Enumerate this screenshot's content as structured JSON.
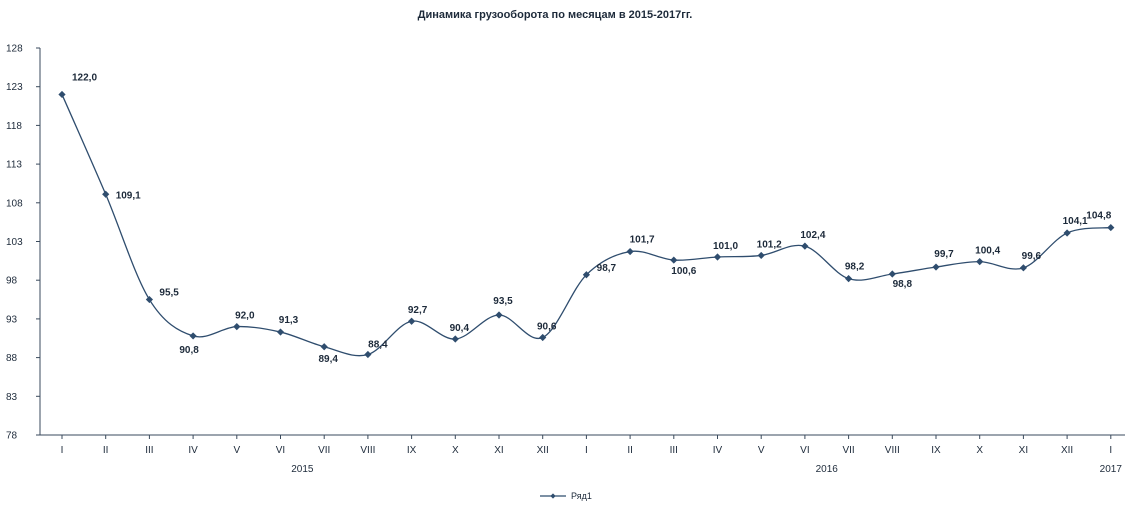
{
  "chart_data": {
    "type": "line",
    "title": "Динамика грузооборота по месяцам в 2015-2017гг.",
    "xlabel": "",
    "ylabel": "",
    "ylim": [
      78,
      128
    ],
    "yticks": [
      "78",
      "83",
      "88",
      "93",
      "98",
      "103",
      "108",
      "113",
      "118",
      "123",
      "128"
    ],
    "categories": [
      "I",
      "II",
      "III",
      "IV",
      "V",
      "VI",
      "VII",
      "VIII",
      "IX",
      "X",
      "XI",
      "XII",
      "I",
      "II",
      "III",
      "IV",
      "V",
      "VI",
      "VII",
      "VIII",
      "IX",
      "X",
      "XI",
      "XII",
      "I"
    ],
    "year_groups": [
      {
        "label": "2015",
        "start": 0,
        "end": 11
      },
      {
        "label": "2016",
        "start": 12,
        "end": 23
      },
      {
        "label": "2017",
        "start": 24,
        "end": 24
      }
    ],
    "series": [
      {
        "name": "Ряд1",
        "values": [
          122.0,
          109.1,
          95.5,
          90.8,
          92.0,
          91.3,
          89.4,
          88.4,
          92.7,
          90.4,
          93.5,
          90.6,
          98.7,
          101.7,
          100.6,
          101.0,
          101.2,
          102.4,
          98.2,
          98.8,
          99.7,
          100.4,
          99.6,
          104.1,
          104.8
        ],
        "labels": [
          "122,0",
          "109,1",
          "95,5",
          "90,8",
          "92,0",
          "91,3",
          "89,4",
          "88,4",
          "92,7",
          "90,4",
          "93,5",
          "90,6",
          "98,7",
          "101,7",
          "100,6",
          "101,0",
          "101,2",
          "102,4",
          "98,2",
          "98,8",
          "99,7",
          "100,4",
          "99,6",
          "104,1",
          "104,8"
        ]
      }
    ],
    "grid": false,
    "legend": "bottom",
    "colors": {
      "series": "#2f4d6e",
      "axis": "#3a4a5c",
      "text": "#1d2a3a"
    }
  }
}
